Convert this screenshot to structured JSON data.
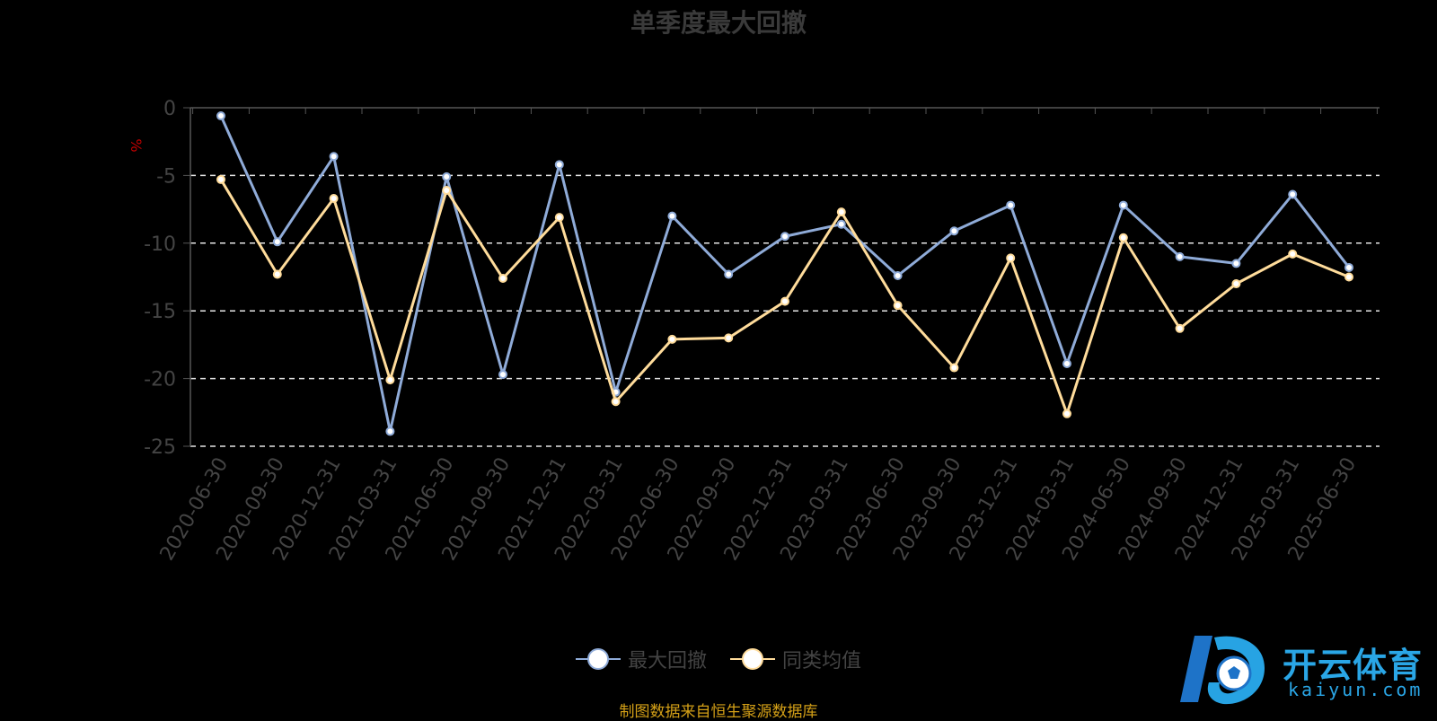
{
  "chart_data": {
    "type": "line",
    "title": "单季度最大回撤",
    "ylabel": "%",
    "xlabel": "",
    "ylim": [
      -25,
      0
    ],
    "yticks": [
      0,
      -5,
      -10,
      -15,
      -20,
      -25
    ],
    "grid": true,
    "legend_position": "bottom-center",
    "categories": [
      "2020-06-30",
      "2020-09-30",
      "2020-12-31",
      "2021-03-31",
      "2021-06-30",
      "2021-09-30",
      "2021-12-31",
      "2022-03-31",
      "2022-06-30",
      "2022-09-30",
      "2022-12-31",
      "2023-03-31",
      "2023-06-30",
      "2023-09-30",
      "2023-12-31",
      "2024-03-31",
      "2024-06-30",
      "2024-09-30",
      "2024-12-31",
      "2025-03-31",
      "2025-06-30"
    ],
    "series": [
      {
        "name": "最大回撤",
        "color": "#8fabd8",
        "values": [
          -0.6,
          -9.9,
          -3.6,
          -23.9,
          -5.1,
          -19.7,
          -4.2,
          -21.0,
          -8.0,
          -12.3,
          -9.5,
          -8.6,
          -12.4,
          -9.1,
          -7.2,
          -18.9,
          -7.2,
          -11.0,
          -11.5,
          -6.4,
          -11.8
        ]
      },
      {
        "name": "同类均值",
        "color": "#ffdc9b",
        "values": [
          -5.3,
          -12.3,
          -6.7,
          -20.1,
          -6.1,
          -12.6,
          -8.1,
          -21.7,
          -17.1,
          -17.0,
          -14.3,
          -7.7,
          -14.6,
          -19.2,
          -11.1,
          -22.6,
          -9.6,
          -16.3,
          -13.0,
          -10.8,
          -12.5
        ]
      }
    ]
  },
  "source_note": "制图数据来自恒生聚源数据库",
  "watermark": {
    "cn": "开云体育",
    "en": "kaiyun.com"
  }
}
